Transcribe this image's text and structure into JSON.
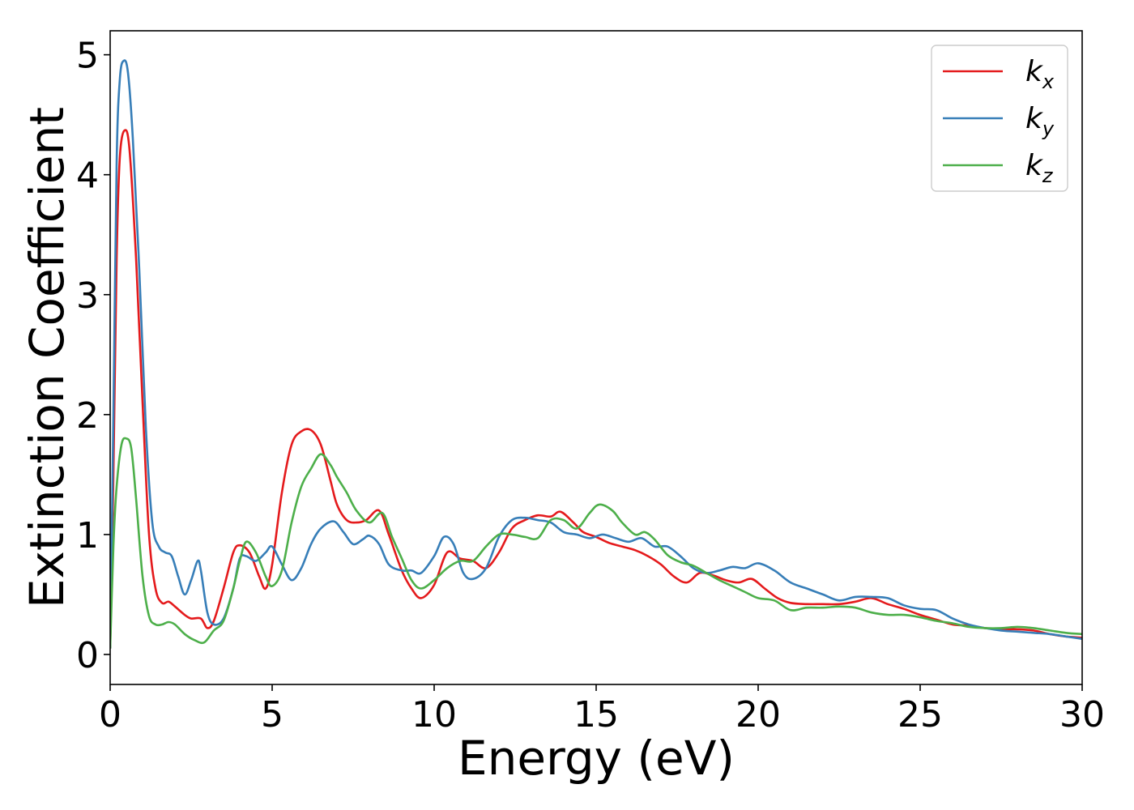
{
  "chart_data": {
    "type": "line",
    "xlabel": "Energy (eV)",
    "ylabel": "Extinction Coefficient",
    "xlim": [
      0,
      30
    ],
    "ylim": [
      -0.25,
      5.2
    ],
    "xticks": [
      0,
      5,
      10,
      15,
      20,
      25,
      30
    ],
    "xtick_labels": [
      "0",
      "5",
      "10",
      "15",
      "20",
      "25",
      "30"
    ],
    "yticks": [
      0,
      1,
      2,
      3,
      4,
      5
    ],
    "ytick_labels": [
      "0",
      "1",
      "2",
      "3",
      "4",
      "5"
    ],
    "grid": false,
    "legend_position": "top-right",
    "series": [
      {
        "name": "k",
        "subscript": "x",
        "color": "#e41a1c",
        "x": [
          0,
          0.1,
          0.2,
          0.3,
          0.45,
          0.6,
          0.8,
          1.0,
          1.2,
          1.4,
          1.6,
          1.8,
          2.0,
          2.3,
          2.5,
          2.8,
          3.0,
          3.2,
          3.5,
          3.8,
          4.0,
          4.3,
          4.6,
          4.8,
          5.0,
          5.3,
          5.6,
          5.9,
          6.2,
          6.5,
          6.8,
          7.0,
          7.3,
          7.6,
          7.9,
          8.3,
          8.6,
          9.0,
          9.3,
          9.6,
          10.0,
          10.4,
          10.8,
          11.2,
          11.6,
          12.0,
          12.4,
          12.8,
          13.2,
          13.6,
          13.9,
          14.3,
          14.6,
          15.0,
          15.4,
          15.8,
          16.2,
          16.6,
          17.0,
          17.4,
          17.8,
          18.2,
          18.6,
          19.0,
          19.4,
          19.8,
          20.2,
          20.6,
          21.0,
          21.5,
          22.0,
          22.5,
          23.0,
          23.5,
          24.0,
          24.5,
          25.0,
          25.5,
          26.0,
          26.5,
          27.0,
          27.5,
          28.0,
          28.5,
          29.0,
          29.5,
          30.0
        ],
        "y": [
          0.05,
          1.5,
          3.3,
          4.15,
          4.37,
          4.2,
          3.3,
          2.1,
          1.0,
          0.55,
          0.43,
          0.44,
          0.4,
          0.33,
          0.3,
          0.3,
          0.22,
          0.28,
          0.55,
          0.85,
          0.91,
          0.85,
          0.65,
          0.55,
          0.75,
          1.35,
          1.75,
          1.86,
          1.87,
          1.75,
          1.45,
          1.25,
          1.12,
          1.1,
          1.12,
          1.2,
          1.0,
          0.7,
          0.55,
          0.47,
          0.58,
          0.85,
          0.8,
          0.78,
          0.72,
          0.85,
          1.05,
          1.12,
          1.16,
          1.15,
          1.19,
          1.1,
          1.02,
          0.98,
          0.93,
          0.9,
          0.87,
          0.82,
          0.75,
          0.65,
          0.6,
          0.68,
          0.66,
          0.62,
          0.6,
          0.63,
          0.55,
          0.47,
          0.43,
          0.42,
          0.42,
          0.42,
          0.44,
          0.47,
          0.42,
          0.38,
          0.33,
          0.29,
          0.25,
          0.24,
          0.22,
          0.21,
          0.21,
          0.2,
          0.17,
          0.15,
          0.14
        ]
      },
      {
        "name": "k",
        "subscript": "y",
        "color": "#377eb8",
        "x": [
          0,
          0.1,
          0.2,
          0.3,
          0.42,
          0.55,
          0.7,
          0.9,
          1.1,
          1.3,
          1.5,
          1.7,
          1.9,
          2.1,
          2.3,
          2.5,
          2.7,
          2.8,
          3.0,
          3.2,
          3.5,
          3.8,
          4.0,
          4.2,
          4.5,
          4.8,
          5.0,
          5.3,
          5.6,
          5.9,
          6.2,
          6.5,
          6.9,
          7.2,
          7.5,
          7.8,
          8.0,
          8.3,
          8.6,
          9.0,
          9.3,
          9.6,
          10.0,
          10.3,
          10.6,
          10.9,
          11.2,
          11.6,
          12.0,
          12.4,
          12.8,
          13.2,
          13.6,
          14.0,
          14.4,
          14.8,
          15.2,
          15.6,
          16.0,
          16.4,
          16.8,
          17.2,
          17.6,
          18.0,
          18.4,
          18.8,
          19.2,
          19.6,
          20.0,
          20.5,
          21.0,
          21.5,
          22.0,
          22.5,
          23.0,
          23.5,
          24.0,
          24.5,
          25.0,
          25.5,
          26.0,
          26.5,
          27.0,
          27.5,
          28.0,
          28.5,
          29.0,
          29.5,
          30.0
        ],
        "y": [
          0.05,
          2.0,
          4.1,
          4.8,
          4.95,
          4.85,
          4.3,
          3.2,
          1.9,
          1.1,
          0.9,
          0.85,
          0.82,
          0.65,
          0.5,
          0.62,
          0.78,
          0.7,
          0.35,
          0.25,
          0.3,
          0.55,
          0.8,
          0.82,
          0.78,
          0.85,
          0.9,
          0.75,
          0.62,
          0.72,
          0.92,
          1.05,
          1.11,
          1.02,
          0.92,
          0.96,
          0.99,
          0.92,
          0.75,
          0.7,
          0.7,
          0.68,
          0.82,
          0.98,
          0.92,
          0.68,
          0.63,
          0.72,
          0.98,
          1.12,
          1.14,
          1.12,
          1.1,
          1.02,
          1.0,
          0.97,
          1.0,
          0.97,
          0.94,
          0.97,
          0.9,
          0.9,
          0.82,
          0.72,
          0.68,
          0.7,
          0.73,
          0.72,
          0.76,
          0.7,
          0.6,
          0.55,
          0.5,
          0.45,
          0.48,
          0.48,
          0.47,
          0.41,
          0.38,
          0.37,
          0.3,
          0.25,
          0.22,
          0.2,
          0.19,
          0.18,
          0.17,
          0.15,
          0.13
        ]
      },
      {
        "name": "k",
        "subscript": "z",
        "color": "#4daf4a",
        "x": [
          0,
          0.1,
          0.2,
          0.35,
          0.5,
          0.65,
          0.8,
          1.0,
          1.2,
          1.4,
          1.6,
          1.8,
          2.0,
          2.3,
          2.6,
          2.9,
          3.2,
          3.5,
          3.8,
          4.0,
          4.2,
          4.5,
          4.8,
          5.0,
          5.3,
          5.6,
          5.9,
          6.2,
          6.5,
          6.8,
          7.0,
          7.3,
          7.6,
          8.0,
          8.4,
          8.7,
          9.0,
          9.3,
          9.6,
          10.0,
          10.4,
          10.8,
          11.2,
          11.6,
          12.0,
          12.4,
          12.8,
          13.2,
          13.6,
          14.0,
          14.4,
          14.8,
          15.1,
          15.5,
          15.8,
          16.2,
          16.5,
          16.8,
          17.2,
          17.6,
          18.0,
          18.4,
          18.8,
          19.2,
          19.6,
          20.0,
          20.5,
          21.0,
          21.5,
          22.0,
          22.5,
          23.0,
          23.5,
          24.0,
          24.5,
          25.0,
          25.5,
          26.0,
          26.5,
          27.0,
          27.5,
          28.0,
          28.5,
          29.0,
          29.5,
          30.0
        ],
        "y": [
          0.05,
          0.9,
          1.4,
          1.75,
          1.8,
          1.72,
          1.3,
          0.65,
          0.32,
          0.25,
          0.25,
          0.27,
          0.25,
          0.17,
          0.12,
          0.1,
          0.2,
          0.28,
          0.55,
          0.78,
          0.94,
          0.85,
          0.65,
          0.57,
          0.7,
          1.1,
          1.4,
          1.55,
          1.67,
          1.58,
          1.48,
          1.35,
          1.2,
          1.1,
          1.18,
          0.98,
          0.8,
          0.62,
          0.55,
          0.62,
          0.72,
          0.78,
          0.78,
          0.9,
          1.0,
          1.0,
          0.98,
          0.97,
          1.12,
          1.12,
          1.05,
          1.18,
          1.25,
          1.2,
          1.1,
          1.0,
          1.02,
          0.96,
          0.83,
          0.77,
          0.74,
          0.68,
          0.62,
          0.57,
          0.52,
          0.47,
          0.45,
          0.37,
          0.39,
          0.39,
          0.4,
          0.39,
          0.35,
          0.33,
          0.33,
          0.31,
          0.28,
          0.26,
          0.23,
          0.22,
          0.22,
          0.23,
          0.22,
          0.2,
          0.18,
          0.17
        ]
      }
    ]
  }
}
